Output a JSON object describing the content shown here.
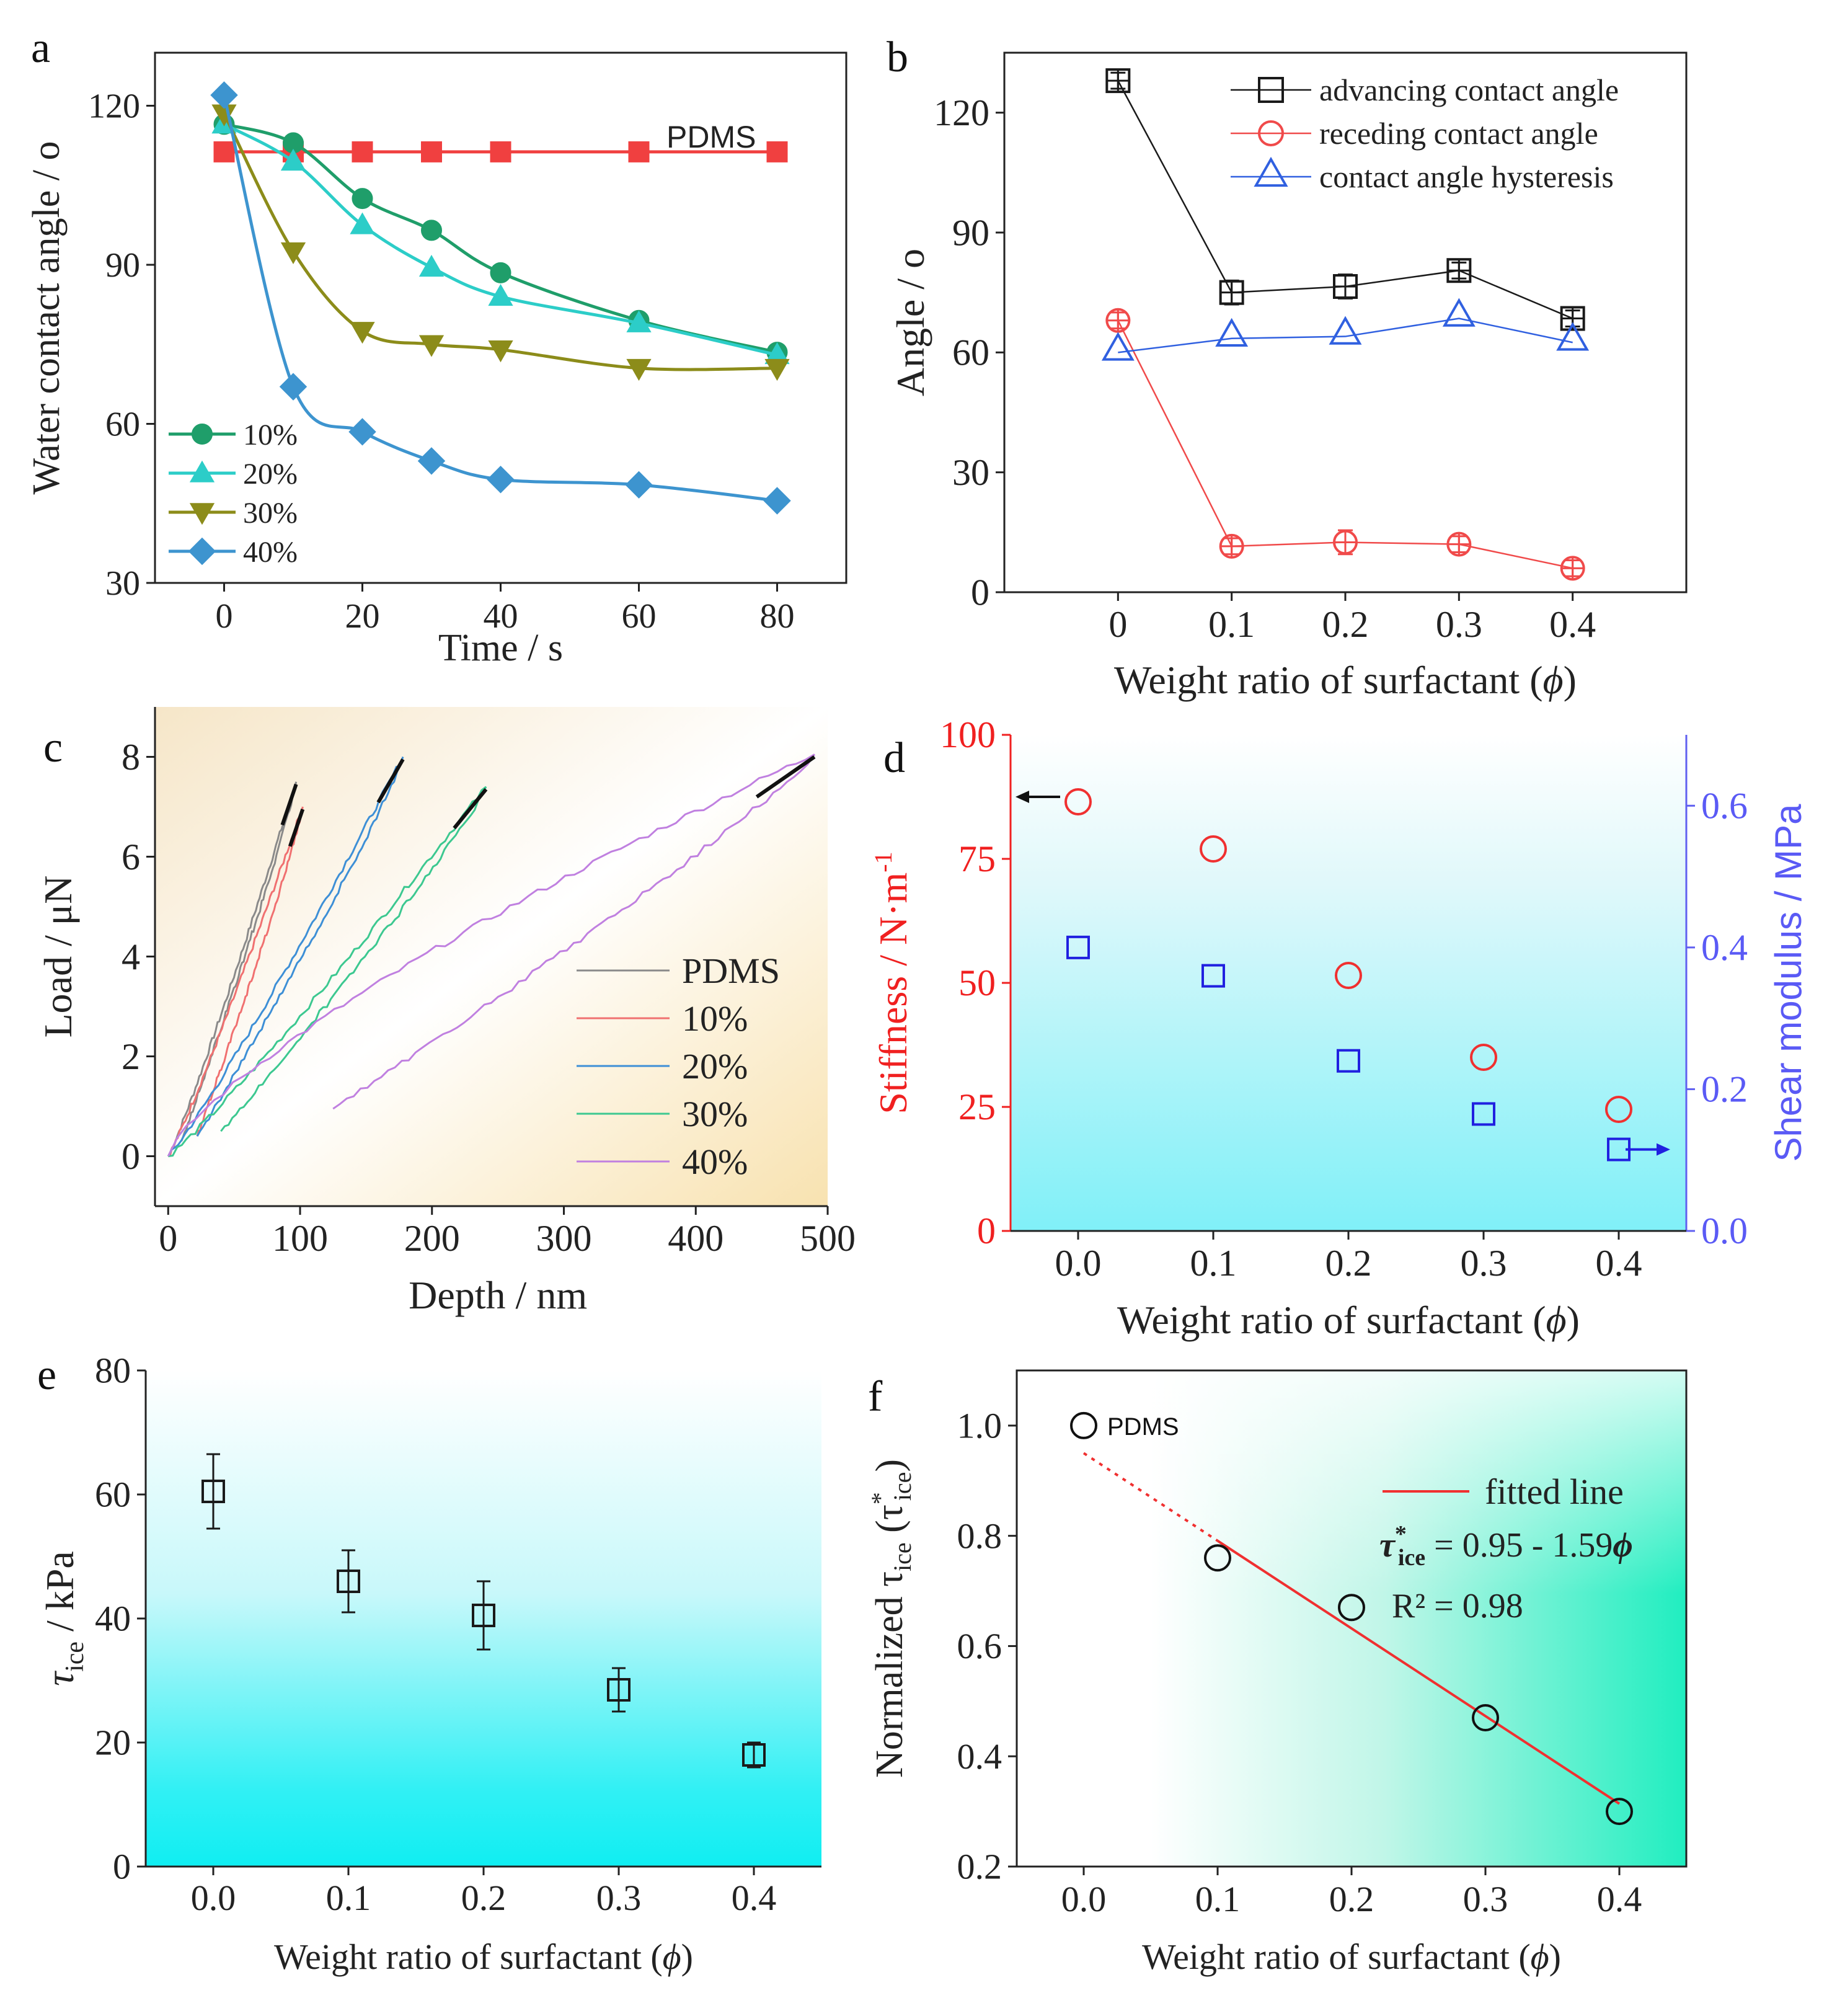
{
  "chart_data": [
    {
      "id": "a",
      "panel_label": "a",
      "type": "line",
      "xlabel": "Time / s",
      "ylabel": "Water contact angle / o",
      "xlim": [
        -10,
        90
      ],
      "ylim": [
        30,
        130
      ],
      "xticks": [
        0,
        20,
        40,
        60,
        80
      ],
      "yticks": [
        30,
        60,
        90,
        120
      ],
      "annotation": "PDMS",
      "series": [
        {
          "name": "PDMS",
          "color": "#f04040",
          "marker": "square",
          "in_legend": false,
          "x": [
            0,
            10,
            20,
            30,
            40,
            60,
            80
          ],
          "y": [
            111.3,
            111.3,
            111.3,
            111.3,
            111.3,
            111.3,
            111.3
          ]
        },
        {
          "name": "10%",
          "color": "#1f9e6a",
          "marker": "circle",
          "in_legend": true,
          "x": [
            0,
            10,
            20,
            30,
            40,
            60,
            80
          ],
          "y": [
            116.5,
            113,
            102.5,
            96.5,
            88.5,
            79.5,
            73.5
          ]
        },
        {
          "name": "20%",
          "color": "#2ccdc8",
          "marker": "triangle-up",
          "in_legend": true,
          "x": [
            0,
            10,
            20,
            30,
            40,
            60,
            80
          ],
          "y": [
            116.5,
            109.5,
            97.5,
            89.5,
            84,
            79,
            73
          ]
        },
        {
          "name": "30%",
          "color": "#8c8c1a",
          "marker": "triangle-down",
          "in_legend": true,
          "x": [
            0,
            10,
            20,
            30,
            40,
            60,
            80
          ],
          "y": [
            118.5,
            92.5,
            77.5,
            75,
            74,
            70.5,
            70.5
          ]
        },
        {
          "name": "40%",
          "color": "#3d94cf",
          "marker": "diamond",
          "in_legend": true,
          "x": [
            0,
            10,
            20,
            30,
            40,
            60,
            80
          ],
          "y": [
            122,
            67,
            58.5,
            53,
            49.5,
            48.5,
            45.5
          ]
        }
      ]
    },
    {
      "id": "b",
      "panel_label": "b",
      "type": "line",
      "xlabel": "Weight ratio of surfactant (ϕ)",
      "ylabel": "Angle / o",
      "xlim": [
        -0.1,
        0.5
      ],
      "ylim": [
        0,
        135
      ],
      "xticks": [
        "0",
        "0.1",
        "0.2",
        "0.3",
        "0.4"
      ],
      "yticks": [
        0,
        30,
        60,
        90,
        120
      ],
      "x": [
        0,
        0.1,
        0.2,
        0.3,
        0.4
      ],
      "series": [
        {
          "name": "advancing contact angle",
          "color": "#1a1a1a",
          "marker": "square",
          "y": [
            128,
            75,
            76.5,
            80.5,
            68.5
          ],
          "err": [
            2,
            3,
            3,
            2,
            2
          ]
        },
        {
          "name": "receding contact angle",
          "color": "#f04a4a",
          "marker": "circle",
          "y": [
            68,
            11.5,
            12.5,
            12,
            6
          ],
          "err": [
            2,
            2,
            3,
            2,
            2
          ]
        },
        {
          "name": "contact angle hysteresis",
          "color": "#3060e0",
          "marker": "triangle",
          "y": [
            60,
            63.5,
            64,
            68.5,
            62.5
          ],
          "err": [
            0,
            0,
            0,
            0,
            0
          ]
        }
      ]
    },
    {
      "id": "c",
      "panel_label": "c",
      "type": "line",
      "xlabel": "Depth / nm",
      "ylabel": "Load / μN",
      "xlim": [
        -10,
        500
      ],
      "ylim": [
        -1,
        9
      ],
      "xticks": [
        0,
        100,
        200,
        300,
        400,
        500
      ],
      "yticks": [
        0,
        2,
        4,
        6,
        8
      ],
      "series": [
        {
          "name": "PDMS",
          "color": "#8a8a8a",
          "peak_depth": 97,
          "peak_load": 7.5,
          "unload_end_depth": 10,
          "unload_end_load": 0.3
        },
        {
          "name": "10%",
          "color": "#f07070",
          "peak_depth": 102,
          "peak_load": 7.0,
          "unload_end_depth": 22,
          "unload_end_load": 0.4
        },
        {
          "name": "20%",
          "color": "#3d8fd6",
          "peak_depth": 178,
          "peak_load": 8.0,
          "unload_end_depth": 22,
          "unload_end_load": 0.4
        },
        {
          "name": "30%",
          "color": "#3cc890",
          "peak_depth": 241,
          "peak_load": 7.4,
          "unload_end_depth": 40,
          "unload_end_load": 0.5
        },
        {
          "name": "40%",
          "color": "#c080e0",
          "peak_depth": 490,
          "peak_load": 8.05,
          "unload_end_depth": 125,
          "unload_end_load": 0.95
        }
      ]
    },
    {
      "id": "d",
      "panel_label": "d",
      "type": "scatter",
      "xlabel": "Weight ratio of surfactant (ϕ)",
      "ylabel_left": "Stiffness / N·m-1",
      "ylabel_right": "Shear modulus / MPa",
      "xlim": [
        -0.05,
        0.45
      ],
      "ylim_left": [
        0,
        100
      ],
      "ylim_right": [
        0,
        0.7
      ],
      "xticks": [
        "0.0",
        "0.1",
        "0.2",
        "0.3",
        "0.4"
      ],
      "yticks_left": [
        0,
        25,
        50,
        75,
        100
      ],
      "yticks_right": [
        "0.0",
        "0.2",
        "0.4",
        "0.6"
      ],
      "x": [
        0,
        0.1,
        0.2,
        0.3,
        0.4
      ],
      "series": [
        {
          "name": "Stiffness",
          "axis": "left",
          "color": "#f03030",
          "marker": "circle",
          "y": [
            86.5,
            77,
            51.5,
            35,
            24.5
          ]
        },
        {
          "name": "Shear modulus",
          "axis": "right",
          "color": "#2020e0",
          "marker": "square",
          "y": [
            0.4,
            0.36,
            0.24,
            0.165,
            0.115
          ]
        }
      ]
    },
    {
      "id": "e",
      "panel_label": "e",
      "type": "scatter",
      "xlabel": "Weight ratio of surfactant (ϕ)",
      "ylabel": "τice / kPa",
      "ylabel_main": "τ",
      "ylabel_sub": "ice",
      "ylabel_unit": " / kPa",
      "xlim": [
        -0.05,
        0.45
      ],
      "ylim": [
        0,
        80
      ],
      "xticks": [
        "0.0",
        "0.1",
        "0.2",
        "0.3",
        "0.4"
      ],
      "yticks": [
        0,
        20,
        40,
        60,
        80
      ],
      "x": [
        0,
        0.1,
        0.2,
        0.3,
        0.4
      ],
      "series": [
        {
          "name": "τice",
          "color": "#1a1a1a",
          "marker": "square",
          "y": [
            60.5,
            46,
            40.5,
            28.5,
            18
          ],
          "err": [
            6,
            5,
            5.5,
            3.5,
            2
          ]
        }
      ]
    },
    {
      "id": "f",
      "panel_label": "f",
      "type": "scatter",
      "xlabel": "Weight ratio of surfactant (ϕ)",
      "ylabel": "Normalized τice (τ*ice)",
      "ylabel_main": "Normalized τ",
      "ylabel_sub": "ice",
      "ylabel_paren": "(τ",
      "ylabel_star": "*",
      "xlim": [
        -0.05,
        0.45
      ],
      "ylim": [
        0.2,
        1.1
      ],
      "xticks": [
        "0.0",
        "0.1",
        "0.2",
        "0.3",
        "0.4"
      ],
      "yticks": [
        "0.2",
        "0.4",
        "0.6",
        "0.8",
        "1.0"
      ],
      "x": [
        0,
        0.1,
        0.2,
        0.3,
        0.4
      ],
      "y": [
        1.0,
        0.76,
        0.67,
        0.47,
        0.3
      ],
      "point_label": "PDMS",
      "legend": "fitted line",
      "fit_lhs_main": "τ",
      "fit_lhs_sub": "ice",
      "fit_lhs_star": "*",
      "fit_rhs": " = 0.95 - 1.59",
      "fit_phi": "ϕ",
      "equation": "τ*ice = 0.95 - 1.59ϕ",
      "fit": {
        "intercept": 0.95,
        "slope": -1.59,
        "solid_from": 0.1,
        "solid_to": 0.4
      },
      "r_squared": "R² = 0.98"
    }
  ]
}
